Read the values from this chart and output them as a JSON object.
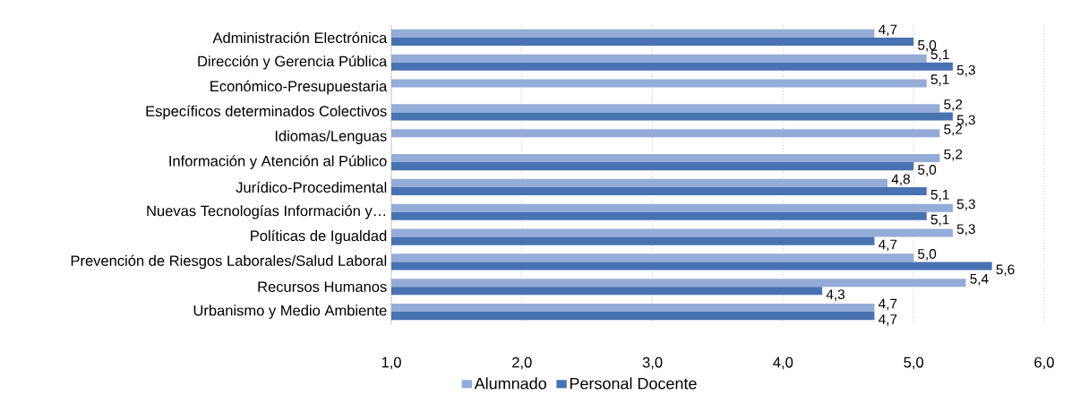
{
  "chart_data": {
    "type": "bar",
    "orientation": "horizontal",
    "categories": [
      "Administración Electrónica",
      "Dirección y Gerencia Pública",
      "Económico-Presupuestaria",
      "Específicos determinados Colectivos",
      "Idiomas/Lenguas",
      "Información y Atención al Público",
      "Jurídico-Procedimental",
      "Nuevas Tecnologías Información y…",
      "Políticas de Igualdad",
      "Prevención de Riesgos Laborales/Salud Laboral",
      "Recursos Humanos",
      "Urbanismo y Medio Ambiente"
    ],
    "series": [
      {
        "name": "Alumnado",
        "color": "#95abd8",
        "values": [
          4.7,
          5.1,
          5.1,
          5.2,
          5.2,
          5.2,
          4.8,
          5.3,
          5.3,
          5.0,
          5.4,
          4.7
        ],
        "value_labels": [
          "4,7",
          "5,1",
          "5,1",
          "5,2",
          "5,2",
          "5,2",
          "4,8",
          "5,3",
          "5,3",
          "5,0",
          "5,4",
          "4,7"
        ]
      },
      {
        "name": "Personal Docente",
        "color": "#4872b2",
        "values": [
          5.0,
          5.3,
          null,
          5.3,
          null,
          5.0,
          5.1,
          5.1,
          4.7,
          5.6,
          4.3,
          4.7
        ],
        "value_labels": [
          "5,0",
          "5,3",
          null,
          "5,3",
          null,
          "5,0",
          "5,1",
          "5,1",
          "4,7",
          "5,6",
          "4,3",
          "4,7"
        ]
      }
    ],
    "xlim": [
      1,
      6
    ],
    "xticks": [
      {
        "value": 1,
        "label": "1,0"
      },
      {
        "value": 2,
        "label": "2,0"
      },
      {
        "value": 3,
        "label": "3,0"
      },
      {
        "value": 4,
        "label": "4,0"
      },
      {
        "value": 5,
        "label": "5,0"
      },
      {
        "value": 6,
        "label": "6,0"
      }
    ],
    "grid": "x",
    "legend": "bottom"
  }
}
